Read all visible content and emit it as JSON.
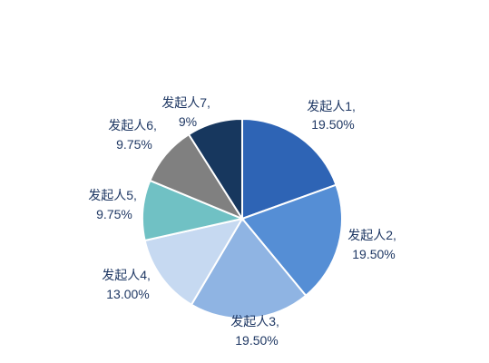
{
  "chart_data": {
    "type": "pie",
    "title": "",
    "series": [
      {
        "label_line1": "发起人1,",
        "label_line2": "19.50%",
        "value": 19.5,
        "color": "#2e64b5"
      },
      {
        "label_line1": "发起人2,",
        "label_line2": "19.50%",
        "value": 19.5,
        "color": "#558ed5"
      },
      {
        "label_line1": "发起人3,",
        "label_line2": "19.50%",
        "value": 19.5,
        "color": "#8fb4e3"
      },
      {
        "label_line1": "发起人4,",
        "label_line2": "13.00%",
        "value": 13.0,
        "color": "#c6d9f1"
      },
      {
        "label_line1": "发起人5,",
        "label_line2": "9.75%",
        "value": 9.75,
        "color": "#70c1c4"
      },
      {
        "label_line1": "发起人6,",
        "label_line2": "9.75%",
        "value": 9.75,
        "color": "#808080"
      },
      {
        "label_line1": "发起人7,",
        "label_line2": "9%",
        "value": 9.0,
        "color": "#17375e"
      }
    ],
    "legend": "none"
  }
}
